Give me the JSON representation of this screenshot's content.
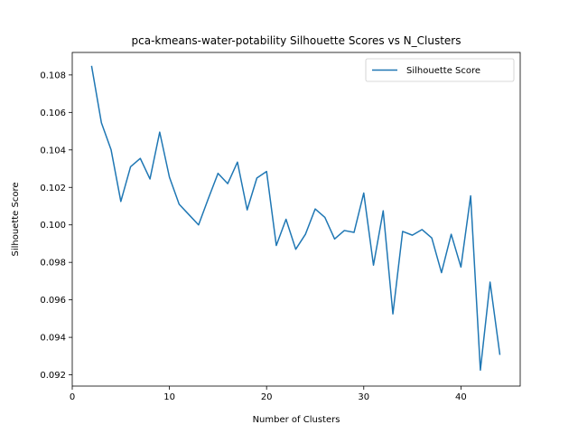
{
  "chart_data": {
    "type": "line",
    "title": "pca-kmeans-water-potability Silhouette Scores vs N_Clusters",
    "xlabel": "Number of Clusters",
    "ylabel": "Silhouette Score",
    "xlim": [
      0,
      46.1
    ],
    "ylim": [
      0.0914,
      0.1092
    ],
    "xticks": [
      0,
      10,
      20,
      30,
      40
    ],
    "xtick_labels": [
      "0",
      "10",
      "20",
      "30",
      "40"
    ],
    "yticks": [
      0.092,
      0.094,
      0.096,
      0.098,
      0.1,
      0.102,
      0.104,
      0.106,
      0.108
    ],
    "ytick_labels": [
      "0.092",
      "0.094",
      "0.096",
      "0.098",
      "0.100",
      "0.102",
      "0.104",
      "0.106",
      "0.108"
    ],
    "grid": false,
    "legend_position": "upper right",
    "series": [
      {
        "name": "Silhouette Score",
        "color": "#1f77b4",
        "x": [
          2,
          3,
          4,
          5,
          6,
          7,
          8,
          9,
          10,
          11,
          12,
          13,
          14,
          15,
          16,
          17,
          18,
          19,
          20,
          21,
          22,
          23,
          24,
          25,
          26,
          27,
          28,
          29,
          30,
          31,
          32,
          33,
          34,
          35,
          36,
          37,
          38,
          39,
          40,
          41,
          42,
          43,
          44
        ],
        "y": [
          0.10845,
          0.10545,
          0.104,
          0.10125,
          0.1031,
          0.10355,
          0.10245,
          0.10495,
          0.10255,
          0.1011,
          0.10055,
          0.1,
          0.1014,
          0.10275,
          0.1022,
          0.10335,
          0.1008,
          0.1025,
          0.10285,
          0.0989,
          0.1003,
          0.0987,
          0.0995,
          0.10085,
          0.1004,
          0.09925,
          0.0997,
          0.0996,
          0.1017,
          0.09785,
          0.10075,
          0.09525,
          0.09965,
          0.09945,
          0.09975,
          0.0993,
          0.09745,
          0.0995,
          0.09775,
          0.10155,
          0.09225,
          0.09695,
          0.0931
        ]
      }
    ]
  }
}
